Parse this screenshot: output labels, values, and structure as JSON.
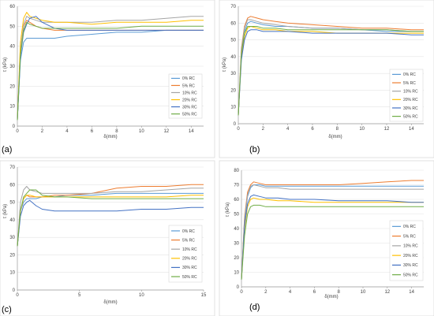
{
  "figure": {
    "panels": [
      {
        "label": "(a)",
        "xlabel": "δ(mm)",
        "ylabel": "τ (kPa)"
      },
      {
        "label": "(b)",
        "xlabel": "δ(mm)",
        "ylabel": "τ (kPa)"
      },
      {
        "label": "(c)",
        "xlabel": "δ(mm)",
        "ylabel": "τ (kPa)"
      },
      {
        "label": "(d)",
        "xlabel": "δ(mm)",
        "ylabel": "τ (kPa)"
      }
    ]
  },
  "chart_data": [
    {
      "type": "line",
      "title": "",
      "xlabel": "δ(mm)",
      "ylabel": "τ (kPa)",
      "xlim": [
        0,
        15
      ],
      "ylim": [
        0,
        60
      ],
      "xticks": [
        0,
        2,
        4,
        6,
        8,
        10,
        12,
        14
      ],
      "yticks": [
        0,
        10,
        20,
        30,
        40,
        50,
        60
      ],
      "grid": "horizontal",
      "legend": "bottom-right",
      "x": [
        0,
        0.25,
        0.5,
        0.75,
        1,
        1.5,
        2,
        3,
        4,
        6,
        8,
        10,
        12,
        14,
        15
      ],
      "series": [
        {
          "name": "0% RC",
          "color": "#5b9bd5",
          "values": [
            3,
            33,
            42,
            44,
            44,
            44,
            44,
            44,
            45,
            46,
            47,
            47,
            48,
            48,
            48
          ]
        },
        {
          "name": "5% RC",
          "color": "#ed7d31",
          "values": [
            3,
            38,
            50,
            53,
            52,
            50,
            49,
            48,
            48,
            48,
            48,
            48,
            48,
            48,
            48
          ]
        },
        {
          "name": "10% RC",
          "color": "#a5a5a5",
          "values": [
            3,
            38,
            51,
            55,
            54,
            53,
            52,
            52,
            52,
            52,
            53,
            53,
            54,
            55,
            55
          ]
        },
        {
          "name": "20% RC",
          "color": "#ffc000",
          "values": [
            3,
            42,
            54,
            57,
            55,
            54,
            53,
            52,
            52,
            51,
            52,
            52,
            52,
            53,
            53
          ]
        },
        {
          "name": "30% RC",
          "color": "#4472c4",
          "values": [
            3,
            35,
            47,
            51,
            54,
            55,
            52,
            49,
            48,
            48,
            48,
            48,
            48,
            48,
            48
          ]
        },
        {
          "name": "50% RC",
          "color": "#70ad47",
          "values": [
            3,
            36,
            48,
            52,
            51,
            50,
            49,
            49,
            49,
            49,
            49,
            50,
            50,
            50,
            50
          ]
        }
      ]
    },
    {
      "type": "line",
      "title": "",
      "xlabel": "δ(mm)",
      "ylabel": "τ (kPa)",
      "xlim": [
        0,
        15
      ],
      "ylim": [
        0,
        70
      ],
      "xticks": [
        0,
        2,
        4,
        6,
        8,
        10,
        12,
        14
      ],
      "yticks": [
        0,
        10,
        20,
        30,
        40,
        50,
        60,
        70
      ],
      "grid": "horizontal",
      "legend": "bottom-right",
      "x": [
        0,
        0.25,
        0.5,
        0.75,
        1,
        1.5,
        2,
        3,
        4,
        6,
        8,
        10,
        12,
        14,
        15
      ],
      "series": [
        {
          "name": "0% RC",
          "color": "#5b9bd5",
          "values": [
            5,
            42,
            55,
            60,
            61,
            60,
            59,
            58,
            58,
            57,
            57,
            56,
            55,
            55,
            55
          ]
        },
        {
          "name": "5% RC",
          "color": "#ed7d31",
          "values": [
            5,
            45,
            58,
            63,
            64,
            63,
            62,
            61,
            60,
            59,
            58,
            57,
            57,
            56,
            56
          ]
        },
        {
          "name": "10% RC",
          "color": "#a5a5a5",
          "values": [
            5,
            44,
            57,
            62,
            62,
            61,
            60,
            59,
            58,
            57,
            57,
            56,
            56,
            55,
            55
          ]
        },
        {
          "name": "20% RC",
          "color": "#ffc000",
          "values": [
            5,
            40,
            52,
            57,
            58,
            57,
            56,
            56,
            55,
            55,
            54,
            54,
            54,
            54,
            54
          ]
        },
        {
          "name": "30% RC",
          "color": "#4472c4",
          "values": [
            5,
            38,
            50,
            55,
            56,
            56,
            55,
            55,
            55,
            54,
            54,
            54,
            54,
            53,
            53
          ]
        },
        {
          "name": "50% RC",
          "color": "#70ad47",
          "values": [
            5,
            42,
            54,
            58,
            58,
            58,
            57,
            57,
            56,
            56,
            56,
            56,
            56,
            55,
            55
          ]
        }
      ]
    },
    {
      "type": "line",
      "title": "",
      "xlabel": "δ(mm)",
      "ylabel": "τ (kPa)",
      "xlim": [
        0,
        15
      ],
      "ylim": [
        0,
        70
      ],
      "xticks": [
        0,
        5,
        10,
        15
      ],
      "yticks": [
        0,
        10,
        20,
        30,
        40,
        50,
        60,
        70
      ],
      "grid": "horizontal",
      "legend": "bottom-right",
      "x": [
        0,
        0.25,
        0.5,
        0.75,
        1,
        1.5,
        2,
        3,
        4,
        6,
        8,
        10,
        12,
        14,
        15
      ],
      "series": [
        {
          "name": "0% RC",
          "color": "#5b9bd5",
          "values": [
            25,
            45,
            50,
            52,
            52,
            52,
            53,
            53,
            54,
            54,
            55,
            55,
            55,
            55,
            55
          ]
        },
        {
          "name": "5% RC",
          "color": "#ed7d31",
          "values": [
            25,
            45,
            52,
            54,
            53,
            53,
            53,
            54,
            54,
            55,
            58,
            59,
            59,
            60,
            60
          ]
        },
        {
          "name": "10% RC",
          "color": "#a5a5a5",
          "values": [
            25,
            50,
            57,
            59,
            57,
            56,
            55,
            55,
            55,
            55,
            56,
            56,
            57,
            58,
            58
          ]
        },
        {
          "name": "20% RC",
          "color": "#ffc000",
          "values": [
            25,
            45,
            52,
            54,
            54,
            53,
            53,
            53,
            53,
            53,
            53,
            53,
            53,
            54,
            54
          ]
        },
        {
          "name": "30% RC",
          "color": "#4472c4",
          "values": [
            25,
            42,
            48,
            50,
            51,
            48,
            46,
            45,
            45,
            45,
            45,
            46,
            46,
            47,
            47
          ]
        },
        {
          "name": "50% RC",
          "color": "#70ad47",
          "values": [
            25,
            45,
            53,
            55,
            57,
            57,
            54,
            53,
            53,
            52,
            52,
            52,
            52,
            52,
            52
          ]
        }
      ]
    },
    {
      "type": "line",
      "title": "",
      "xlabel": "δ(mm)",
      "ylabel": "τ (kPa)",
      "xlim": [
        0,
        15
      ],
      "ylim": [
        0,
        80
      ],
      "xticks": [
        0,
        2,
        4,
        6,
        8,
        10,
        12,
        14
      ],
      "yticks": [
        0,
        10,
        20,
        30,
        40,
        50,
        60,
        70,
        80
      ],
      "grid": "horizontal",
      "legend": "bottom-right",
      "x": [
        0,
        0.25,
        0.5,
        0.75,
        1,
        1.5,
        2,
        3,
        4,
        6,
        8,
        10,
        12,
        14,
        15
      ],
      "series": [
        {
          "name": "0% RC",
          "color": "#5b9bd5",
          "values": [
            5,
            45,
            62,
            68,
            70,
            70,
            69,
            69,
            69,
            69,
            69,
            69,
            69,
            69,
            69
          ]
        },
        {
          "name": "5% RC",
          "color": "#ed7d31",
          "values": [
            5,
            48,
            65,
            70,
            72,
            71,
            70,
            70,
            70,
            70,
            70,
            71,
            72,
            73,
            73
          ]
        },
        {
          "name": "10% RC",
          "color": "#a5a5a5",
          "values": [
            5,
            47,
            63,
            69,
            70,
            69,
            68,
            68,
            67,
            67,
            67,
            67,
            67,
            67,
            67
          ]
        },
        {
          "name": "20% RC",
          "color": "#ffc000",
          "values": [
            5,
            40,
            55,
            60,
            61,
            60,
            60,
            59,
            59,
            58,
            58,
            58,
            58,
            58,
            58
          ]
        },
        {
          "name": "30% RC",
          "color": "#4472c4",
          "values": [
            5,
            42,
            57,
            62,
            63,
            62,
            61,
            61,
            60,
            60,
            59,
            59,
            59,
            58,
            58
          ]
        },
        {
          "name": "50% RC",
          "color": "#70ad47",
          "values": [
            5,
            35,
            50,
            55,
            56,
            56,
            55,
            55,
            55,
            55,
            55,
            55,
            55,
            55,
            55
          ]
        }
      ]
    }
  ]
}
